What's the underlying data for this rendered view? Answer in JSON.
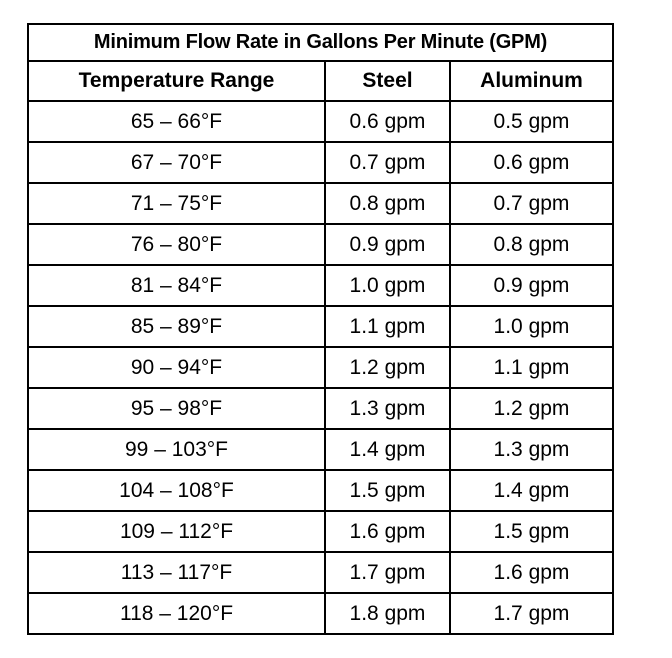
{
  "table": {
    "title": "Minimum Flow Rate in Gallons Per Minute (GPM)",
    "columns": [
      "Temperature Range",
      "Steel",
      "Aluminum"
    ],
    "rows": [
      [
        "65 – 66°F",
        "0.6 gpm",
        "0.5 gpm"
      ],
      [
        "67 – 70°F",
        "0.7 gpm",
        "0.6 gpm"
      ],
      [
        "71 – 75°F",
        "0.8 gpm",
        "0.7 gpm"
      ],
      [
        "76 – 80°F",
        "0.9 gpm",
        "0.8 gpm"
      ],
      [
        "81 – 84°F",
        "1.0 gpm",
        "0.9 gpm"
      ],
      [
        "85 – 89°F",
        "1.1 gpm",
        "1.0 gpm"
      ],
      [
        "90 – 94°F",
        "1.2 gpm",
        "1.1 gpm"
      ],
      [
        "95 – 98°F",
        "1.3 gpm",
        "1.2 gpm"
      ],
      [
        "99 – 103°F",
        "1.4 gpm",
        "1.3 gpm"
      ],
      [
        "104 – 108°F",
        "1.5 gpm",
        "1.4 gpm"
      ],
      [
        "109 – 112°F",
        "1.6 gpm",
        "1.5 gpm"
      ],
      [
        "113 – 117°F",
        "1.7 gpm",
        "1.6 gpm"
      ],
      [
        "118 – 120°F",
        "1.8 gpm",
        "1.7 gpm"
      ]
    ]
  }
}
